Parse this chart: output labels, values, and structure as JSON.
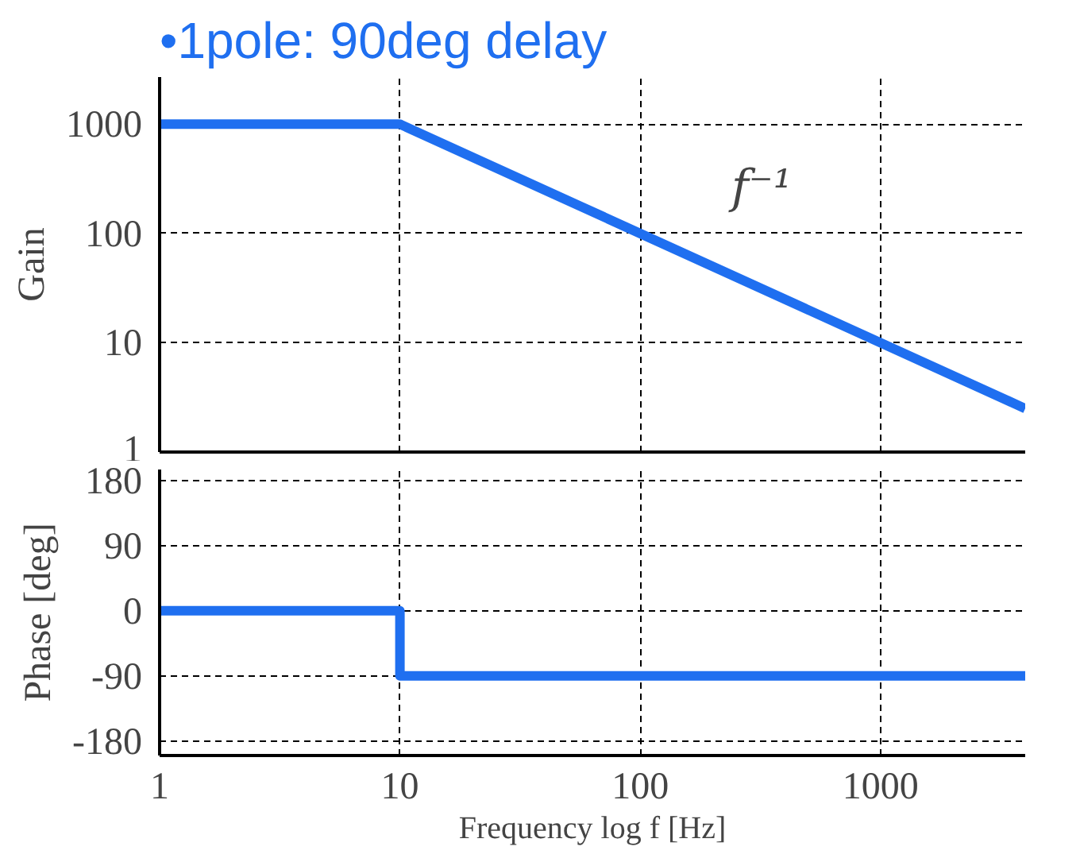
{
  "chart_data": [
    {
      "type": "line",
      "title": "•1pole: 90deg delay",
      "ylabel": "Gain",
      "log": "xy",
      "xlim": [
        1,
        4000
      ],
      "ylim": [
        1,
        2700
      ],
      "xticks": [
        1,
        10,
        100,
        1000
      ],
      "yticks": [
        1,
        10,
        100,
        1000
      ],
      "grid": true,
      "tick_labels": "y",
      "annotations": [
        "f⁻¹"
      ],
      "series": [
        {
          "color": "#1f6ff0",
          "x": [
            1,
            10,
            4000
          ],
          "values": [
            1000,
            1000,
            2.5
          ]
        }
      ]
    },
    {
      "type": "line",
      "xlabel": "Frequency log f [Hz]",
      "ylabel": "Phase [deg]",
      "log": "x",
      "xlim": [
        1,
        4000
      ],
      "ylim": [
        -200,
        195
      ],
      "xticks": [
        1,
        10,
        100,
        1000
      ],
      "yticks": [
        -180,
        -90,
        0,
        90,
        180
      ],
      "grid": true,
      "series": [
        {
          "color": "#1f6ff0",
          "x": [
            1,
            10,
            10,
            4000
          ],
          "values": [
            0,
            0,
            -90,
            -90
          ]
        }
      ]
    }
  ]
}
